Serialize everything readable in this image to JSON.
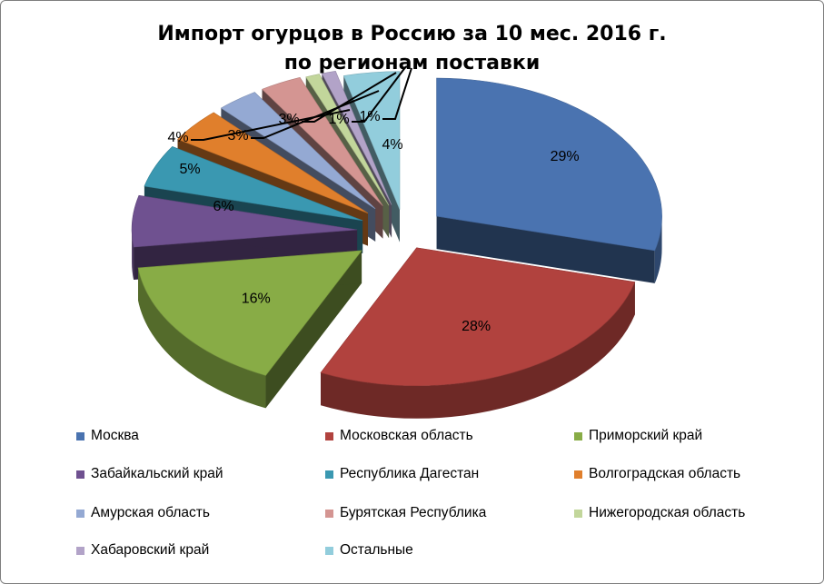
{
  "title": {
    "line1": "Импорт огурцов в Россию за 10 мес. 2016 г.",
    "line2": "по регионам поставки"
  },
  "chart_data": {
    "type": "pie",
    "variant": "3d-exploded",
    "title": "Импорт огурцов в Россию за 10 мес. 2016 г. по регионам поставки",
    "unit": "%",
    "legend_position": "bottom",
    "slices": [
      {
        "name": "Москва",
        "value": 29,
        "label": "29%",
        "color": "#4a73b0"
      },
      {
        "name": "Московская область",
        "value": 28,
        "label": "28%",
        "color": "#b1423e"
      },
      {
        "name": "Приморский край",
        "value": 16,
        "label": "16%",
        "color": "#88ac46"
      },
      {
        "name": "Забайкальский край",
        "value": 6,
        "label": "6%",
        "color": "#6f5190"
      },
      {
        "name": "Республика Дагестан",
        "value": 5,
        "label": "5%",
        "color": "#3a98b1"
      },
      {
        "name": "Волгоградская область",
        "value": 4,
        "label": "4%",
        "color": "#e07f2c"
      },
      {
        "name": "Амурская область",
        "value": 3,
        "label": "3%",
        "color": "#94a9d3"
      },
      {
        "name": "Бурятская Республика",
        "value": 3,
        "label": "3%",
        "color": "#d49592"
      },
      {
        "name": "Нижегородская область",
        "value": 1,
        "label": "1%",
        "color": "#c2d69b"
      },
      {
        "name": "Хабаровский край",
        "value": 1,
        "label": "1%",
        "color": "#b2a3c8"
      },
      {
        "name": "Остальные",
        "value": 4,
        "label": "4%",
        "color": "#92cddc"
      }
    ]
  }
}
